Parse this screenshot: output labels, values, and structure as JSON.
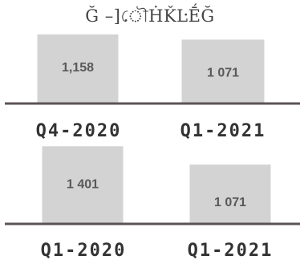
{
  "title": "Ğ  –]ৌḢǨĿḖĞ",
  "colors": {
    "bar": "#d3d3d3",
    "baseline": "#5c5356",
    "category_text": "#333333",
    "value_text": "#595959"
  },
  "chart_data": [
    {
      "type": "bar",
      "categories": [
        "Q4-2020",
        "Q1-2021"
      ],
      "values": [
        1158,
        1071
      ],
      "value_labels": [
        "1,158",
        "1 071"
      ],
      "ylim": [
        0,
        1170
      ],
      "grid": false
    },
    {
      "type": "bar",
      "categories": [
        "Q1-2020",
        "Q1-2021"
      ],
      "values": [
        1401,
        1071
      ],
      "value_labels": [
        "1 401",
        "1 071"
      ],
      "ylim": [
        0,
        1420
      ],
      "grid": false
    }
  ]
}
